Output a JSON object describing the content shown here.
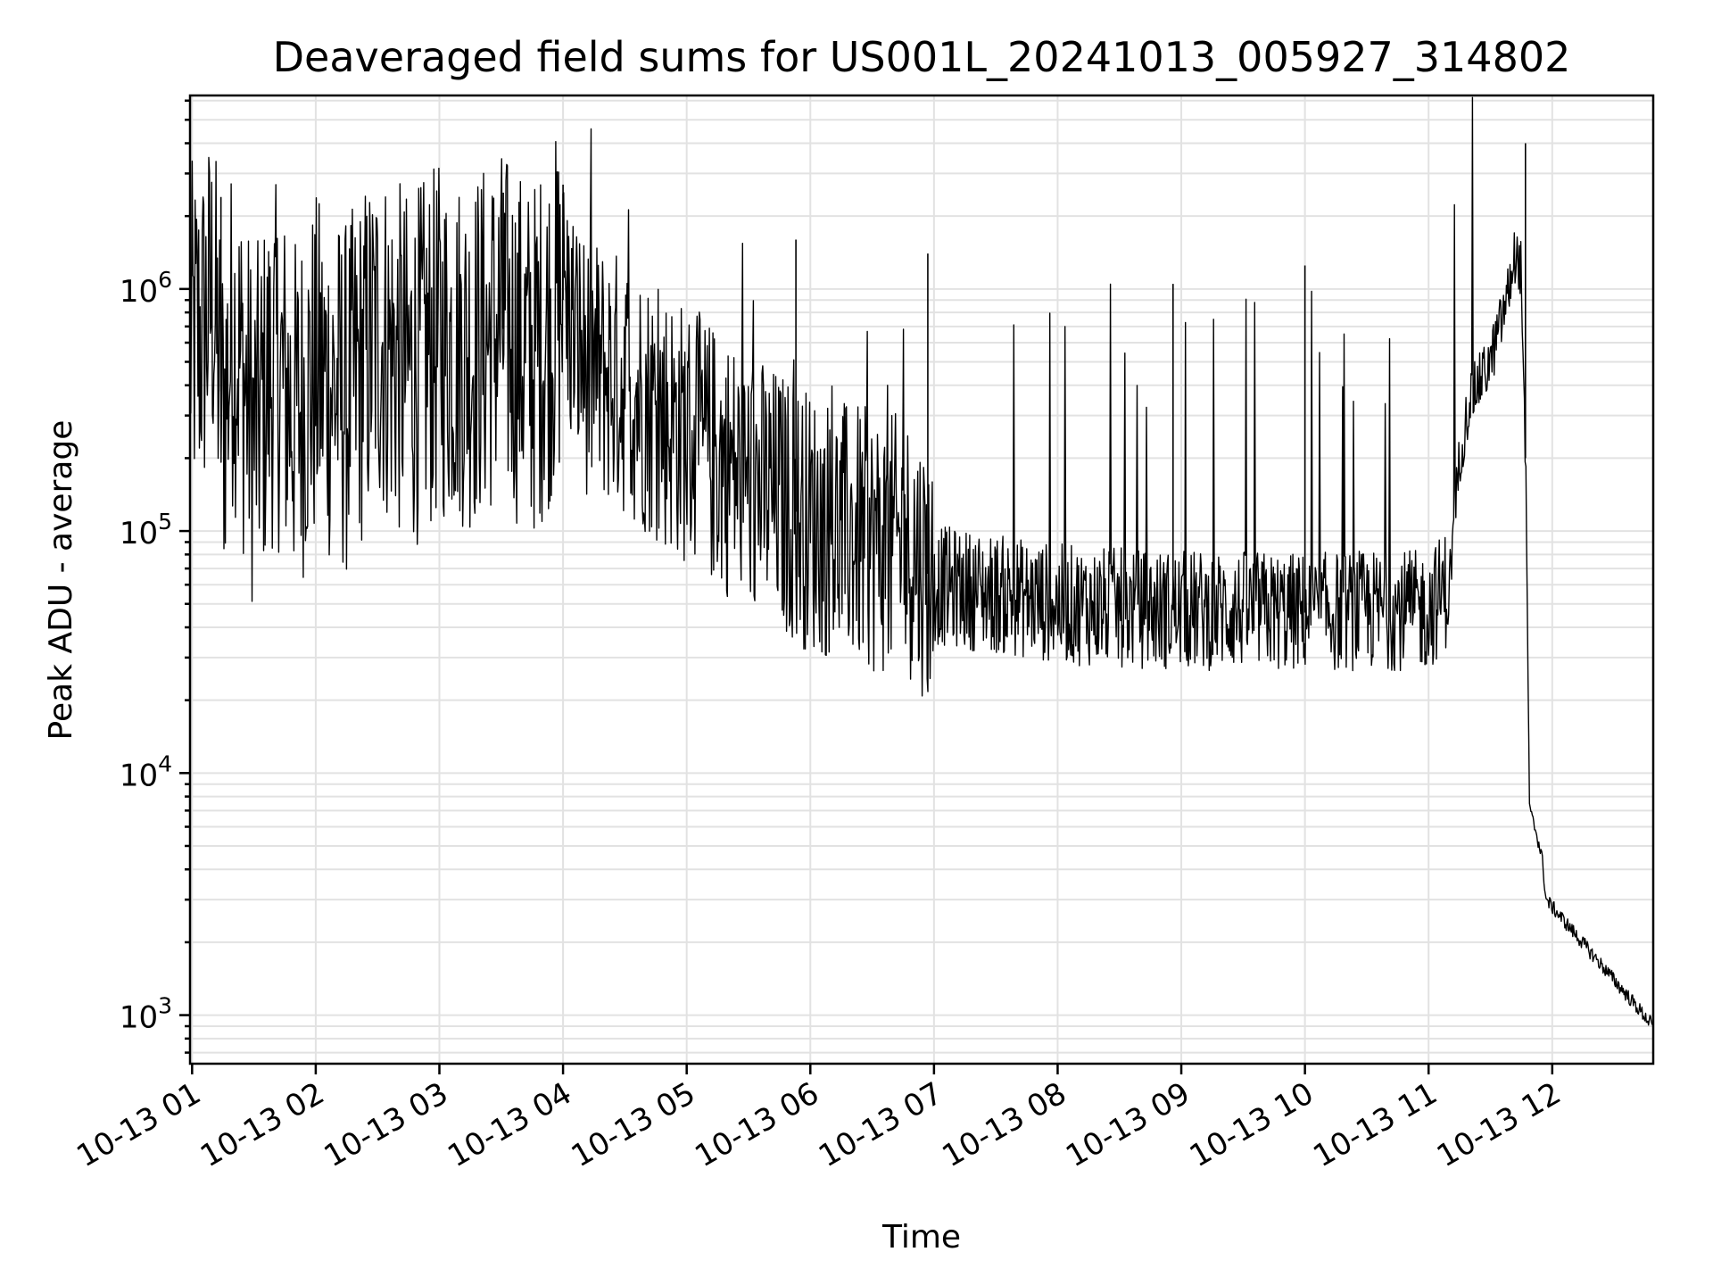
{
  "chart_data": {
    "type": "line",
    "title": "Deaveraged field sums for US001L_20241013_005927_314802",
    "xlabel": "Time",
    "ylabel": "Peak ADU - average",
    "yscale": "log",
    "ylim": [
      630,
      6300000
    ],
    "xlim": [
      "2024-10-13 00:59",
      "2024-10-13 12:49"
    ],
    "grid": true,
    "line_color": "#000000",
    "grid_color": "#e2e2e2",
    "x_ticks": [
      {
        "value": "2024-10-13 01:00",
        "label": "10-13 01"
      },
      {
        "value": "2024-10-13 02:00",
        "label": "10-13 02"
      },
      {
        "value": "2024-10-13 03:00",
        "label": "10-13 03"
      },
      {
        "value": "2024-10-13 04:00",
        "label": "10-13 04"
      },
      {
        "value": "2024-10-13 05:00",
        "label": "10-13 05"
      },
      {
        "value": "2024-10-13 06:00",
        "label": "10-13 06"
      },
      {
        "value": "2024-10-13 07:00",
        "label": "10-13 07"
      },
      {
        "value": "2024-10-13 08:00",
        "label": "10-13 08"
      },
      {
        "value": "2024-10-13 09:00",
        "label": "10-13 09"
      },
      {
        "value": "2024-10-13 10:00",
        "label": "10-13 10"
      },
      {
        "value": "2024-10-13 11:00",
        "label": "10-13 11"
      },
      {
        "value": "2024-10-13 12:00",
        "label": "10-13 12"
      }
    ],
    "y_ticks": [
      {
        "value": 1000,
        "base": "10",
        "exp": "3"
      },
      {
        "value": 10000,
        "base": "10",
        "exp": "4"
      },
      {
        "value": 100000,
        "base": "10",
        "exp": "5"
      },
      {
        "value": 1000000,
        "base": "10",
        "exp": "6"
      }
    ],
    "series": [
      {
        "values_note_omitted": null,
        "points": [
          [
            "2024-10-13 00:59",
            600000
          ],
          [
            "2024-10-13 01:05",
            650000
          ],
          [
            "2024-10-13 01:10",
            950000
          ],
          [
            "2024-10-13 01:15",
            300000
          ],
          [
            "2024-10-13 01:20",
            700000
          ],
          [
            "2024-10-13 01:30",
            250000
          ],
          [
            "2024-10-13 01:40",
            500000
          ],
          [
            "2024-10-13 01:50",
            300000
          ],
          [
            "2024-10-13 02:00",
            450000
          ],
          [
            "2024-10-13 02:15",
            350000
          ],
          [
            "2024-10-13 02:30",
            650000
          ],
          [
            "2024-10-13 02:45",
            450000
          ],
          [
            "2024-10-13 03:00",
            600000
          ],
          [
            "2024-10-13 03:15",
            550000
          ],
          [
            "2024-10-13 03:30",
            700000
          ],
          [
            "2024-10-13 03:45",
            500000
          ],
          [
            "2024-10-13 04:00",
            900000
          ],
          [
            "2024-10-13 04:10",
            500000
          ],
          [
            "2024-10-13 04:30",
            400000
          ],
          [
            "2024-10-13 05:00",
            250000
          ],
          [
            "2024-10-13 05:30",
            160000
          ],
          [
            "2024-10-13 06:00",
            110000
          ],
          [
            "2024-10-13 06:30",
            90000
          ],
          [
            "2024-10-13 06:50",
            85000
          ],
          [
            "2024-10-13 07:00",
            60000
          ],
          [
            "2024-10-13 07:30",
            55000
          ],
          [
            "2024-10-13 08:00",
            50000
          ],
          [
            "2024-10-13 08:30",
            48000
          ],
          [
            "2024-10-13 09:00",
            47000
          ],
          [
            "2024-10-13 09:30",
            47000
          ],
          [
            "2024-10-13 10:00",
            46000
          ],
          [
            "2024-10-13 10:30",
            47000
          ],
          [
            "2024-10-13 11:00",
            47000
          ],
          [
            "2024-10-13 11:10",
            60000
          ],
          [
            "2024-10-13 11:15",
            200000
          ],
          [
            "2024-10-13 11:20",
            350000
          ],
          [
            "2024-10-13 11:30",
            500000
          ],
          [
            "2024-10-13 11:38",
            900000
          ],
          [
            "2024-10-13 11:42",
            1400000
          ],
          [
            "2024-10-13 11:45",
            1200000
          ],
          [
            "2024-10-13 11:47",
            200000
          ],
          [
            "2024-10-13 11:49",
            7000
          ],
          [
            "2024-10-13 11:52",
            5800
          ],
          [
            "2024-10-13 11:55",
            4500
          ],
          [
            "2024-10-13 11:57",
            3000
          ],
          [
            "2024-10-13 12:49",
            900
          ]
        ]
      }
    ],
    "spikes": [
      [
        "2024-10-13 01:14",
        2400000
      ],
      [
        "2024-10-13 03:31",
        2500000
      ],
      [
        "2024-10-13 04:00",
        2700000
      ],
      [
        "2024-10-13 05:53",
        1600000
      ],
      [
        "2024-10-13 06:57",
        1400000
      ],
      [
        "2024-10-13 08:56",
        1050000
      ],
      [
        "2024-10-13 10:00",
        1250000
      ],
      [
        "2024-10-13 11:47",
        4000000
      ]
    ]
  }
}
